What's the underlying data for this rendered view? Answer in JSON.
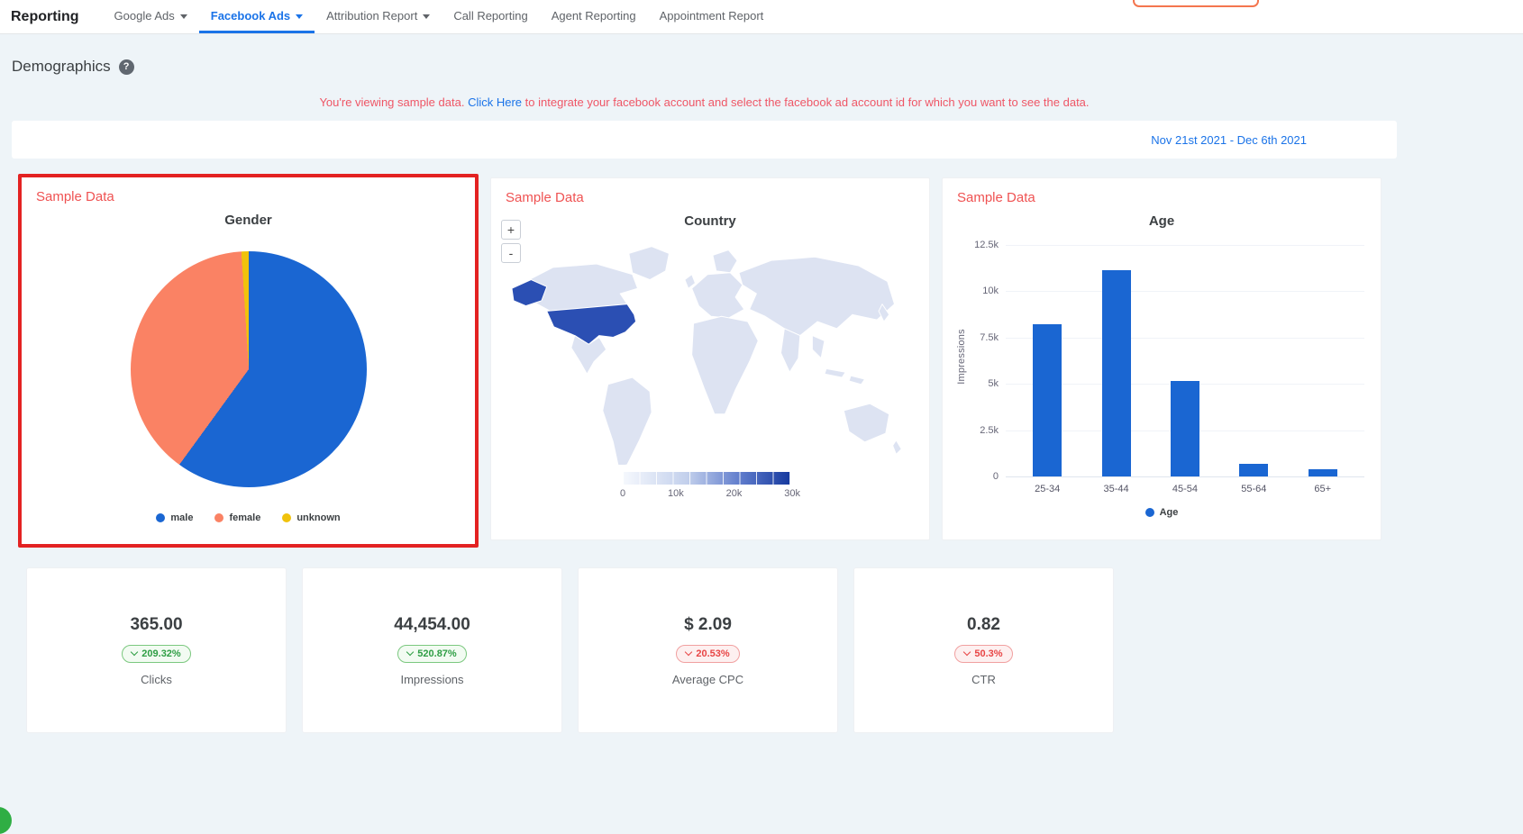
{
  "nav": {
    "title": "Reporting",
    "tabs": [
      {
        "label": "Google Ads",
        "has_dropdown": true,
        "active": false
      },
      {
        "label": "Facebook Ads",
        "has_dropdown": true,
        "active": true
      },
      {
        "label": "Attribution Report",
        "has_dropdown": true,
        "active": false
      },
      {
        "label": "Call Reporting",
        "has_dropdown": false,
        "active": false
      },
      {
        "label": "Agent Reporting",
        "has_dropdown": false,
        "active": false
      },
      {
        "label": "Appointment Report",
        "has_dropdown": false,
        "active": false
      }
    ]
  },
  "page": {
    "title": "Demographics",
    "help_glyph": "?"
  },
  "notice": {
    "prefix": "You're viewing sample data.",
    "link": "Click Here",
    "suffix": "to integrate your facebook account and select the facebook ad account id for which you want to see the data."
  },
  "date_range": "Nov 21st 2021 - Dec 6th 2021",
  "sample_label": "Sample Data",
  "chart_data": [
    {
      "type": "pie",
      "title": "Gender",
      "labels": [
        "male",
        "female",
        "unknown"
      ],
      "values": [
        60,
        39,
        1
      ],
      "colors": [
        "#1a66d2",
        "#fa8264",
        "#f0c20c"
      ],
      "legend_position": "bottom",
      "highlighted": true
    },
    {
      "type": "heatmap",
      "subtype": "world-choropleth",
      "title": "Country",
      "highlighted_countries": [
        "United States"
      ],
      "scale_min": 0,
      "scale_max": 30000,
      "scale_ticks": [
        "0",
        "10k",
        "20k",
        "30k"
      ],
      "zoom_in": "+",
      "zoom_out": "-",
      "land_color": "#dde3f2",
      "highlight_color": "#2b4fb3"
    },
    {
      "type": "bar",
      "title": "Age",
      "categories": [
        "25-34",
        "35-44",
        "45-54",
        "55-64",
        "65+"
      ],
      "values": [
        8200,
        11150,
        5150,
        700,
        380
      ],
      "ylabel": "Impressions",
      "ylim": [
        0,
        12500
      ],
      "yticks": [
        "0",
        "2.5k",
        "5k",
        "7.5k",
        "10k",
        "12.5k"
      ],
      "legend": "Age",
      "bar_color": "#1a66d2",
      "grid": true
    }
  ],
  "metrics": [
    {
      "value": "365.00",
      "change": "209.32%",
      "direction": "down",
      "badge": "green",
      "label": "Clicks"
    },
    {
      "value": "44,454.00",
      "change": "520.87%",
      "direction": "down",
      "badge": "green",
      "label": "Impressions"
    },
    {
      "value": "$ 2.09",
      "change": "20.53%",
      "direction": "down",
      "badge": "red",
      "label": "Average CPC"
    },
    {
      "value": "0.82",
      "change": "50.3%",
      "direction": "down",
      "badge": "red",
      "label": "CTR"
    }
  ],
  "theme": {
    "accent_blue": "#1a73e8",
    "notice_red": "#ef5666",
    "sample_red": "#ef5252",
    "highlight_border_red": "#e32222",
    "positive_text": "#2e9e44",
    "positive_border": "#7bc87f",
    "positive_bg": "#f2fbf2",
    "negative_text": "#e84545",
    "negative_border": "#f1a0a0",
    "negative_bg": "#fdf0f0"
  }
}
